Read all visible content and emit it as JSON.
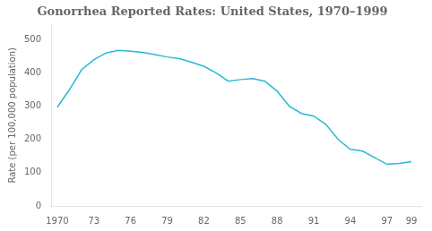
{
  "chart_data": {
    "type": "line",
    "title": "Gonorrhea Reported Rates: United States, 1970–1999",
    "y_label": "Rate (per 100,000 population)",
    "x": [
      1970,
      1971,
      1972,
      1973,
      1974,
      1975,
      1976,
      1977,
      1978,
      1979,
      1980,
      1981,
      1982,
      1983,
      1984,
      1985,
      1986,
      1987,
      1988,
      1989,
      1990,
      1991,
      1992,
      1993,
      1994,
      1995,
      1996,
      1997,
      1998,
      1999
    ],
    "values": [
      297,
      350,
      410,
      440,
      460,
      468,
      465,
      462,
      455,
      448,
      443,
      432,
      420,
      400,
      375,
      380,
      383,
      375,
      345,
      300,
      278,
      270,
      245,
      200,
      170,
      165,
      145,
      125,
      128,
      133
    ],
    "color": "#29b8d8",
    "xlim": [
      1969.5,
      1999.8
    ],
    "xticks": [
      1970,
      {
        "value": 1973,
        "label": "73"
      },
      {
        "value": 1976,
        "label": "76"
      },
      {
        "value": 1979,
        "label": "79"
      },
      {
        "value": 1982,
        "label": "82"
      },
      {
        "value": 1985,
        "label": "85"
      },
      {
        "value": 1988,
        "label": "88"
      },
      {
        "value": 1991,
        "label": "91"
      },
      {
        "value": 1994,
        "label": "94"
      },
      {
        "value": 1997,
        "label": "97"
      },
      {
        "value": 1999,
        "label": "99"
      }
    ],
    "ylim": [
      0,
      545
    ],
    "yticks": [
      0,
      100,
      200,
      300,
      400,
      500
    ],
    "grid": false
  }
}
